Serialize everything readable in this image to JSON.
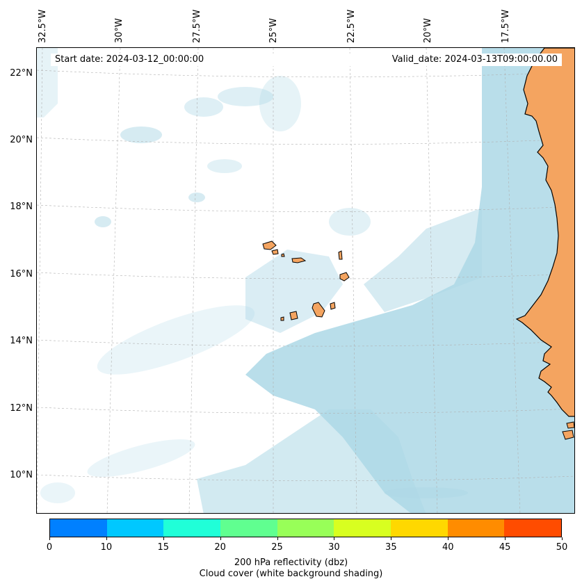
{
  "start_date": "Start date: 2024-03-12_00:00:00",
  "valid_date": "Valid_date: 2024-03-13T09:00:00.00",
  "longitude_labels": [
    "32.5°W",
    "30°W",
    "27.5°W",
    "25°W",
    "22.5°W",
    "20°W",
    "17.5°W"
  ],
  "latitude_labels": [
    "22°N",
    "20°N",
    "18°N",
    "16°N",
    "14°N",
    "12°N",
    "10°N"
  ],
  "colorbar": {
    "ticks": [
      "0",
      "10",
      "15",
      "20",
      "25",
      "30",
      "35",
      "40",
      "45",
      "50"
    ],
    "colors": [
      "#0080ff",
      "#00c8ff",
      "#20ffd8",
      "#60ff90",
      "#98ff58",
      "#d8ff20",
      "#ffd800",
      "#ff8c00",
      "#ff4c00"
    ],
    "label": "200 hPa reflectivity (dbz)",
    "sublabel": "Cloud cover (white background shading)"
  },
  "colors": {
    "land": "#f4a460",
    "cloud": "#add8e6",
    "ocean": "#ffffff"
  }
}
